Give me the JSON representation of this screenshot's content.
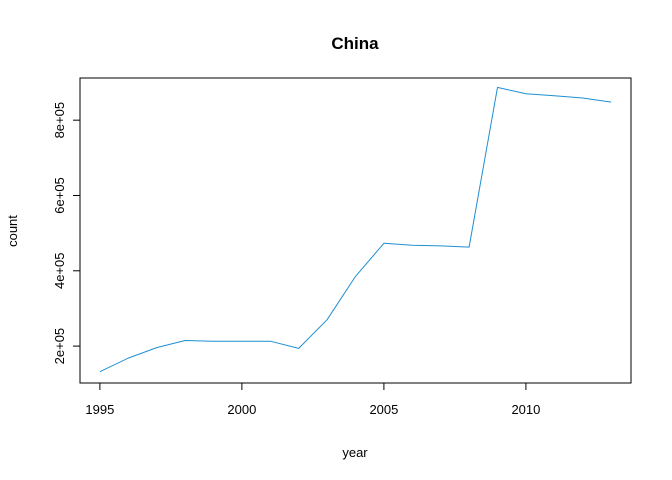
{
  "chart_data": {
    "type": "line",
    "title": "China",
    "xlabel": "year",
    "ylabel": "count",
    "x_ticks": [
      {
        "value": 1995,
        "label": "1995"
      },
      {
        "value": 2000,
        "label": "2000"
      },
      {
        "value": 2005,
        "label": "2005"
      },
      {
        "value": 2010,
        "label": "2010"
      }
    ],
    "y_ticks": [
      {
        "value": 200000,
        "label": "2e+05"
      },
      {
        "value": 400000,
        "label": "4e+05"
      },
      {
        "value": 600000,
        "label": "6e+05"
      },
      {
        "value": 800000,
        "label": "8e+05"
      }
    ],
    "xlim": [
      1994.3,
      2013.7
    ],
    "ylim": [
      102000,
      912000
    ],
    "grid": false,
    "line_color": "#1f8fd1",
    "series": [
      {
        "x": [
          1995,
          1996,
          1997,
          1998,
          1999,
          2000,
          2001,
          2002,
          2003,
          2004,
          2005,
          2006,
          2007,
          2008,
          2009,
          2010,
          2011,
          2012,
          2013
        ],
        "values": [
          132000,
          168000,
          196000,
          215000,
          213000,
          213000,
          213000,
          194000,
          270000,
          385000,
          473000,
          468000,
          466000,
          463000,
          887000,
          870000,
          865000,
          859000,
          848000
        ]
      }
    ]
  }
}
